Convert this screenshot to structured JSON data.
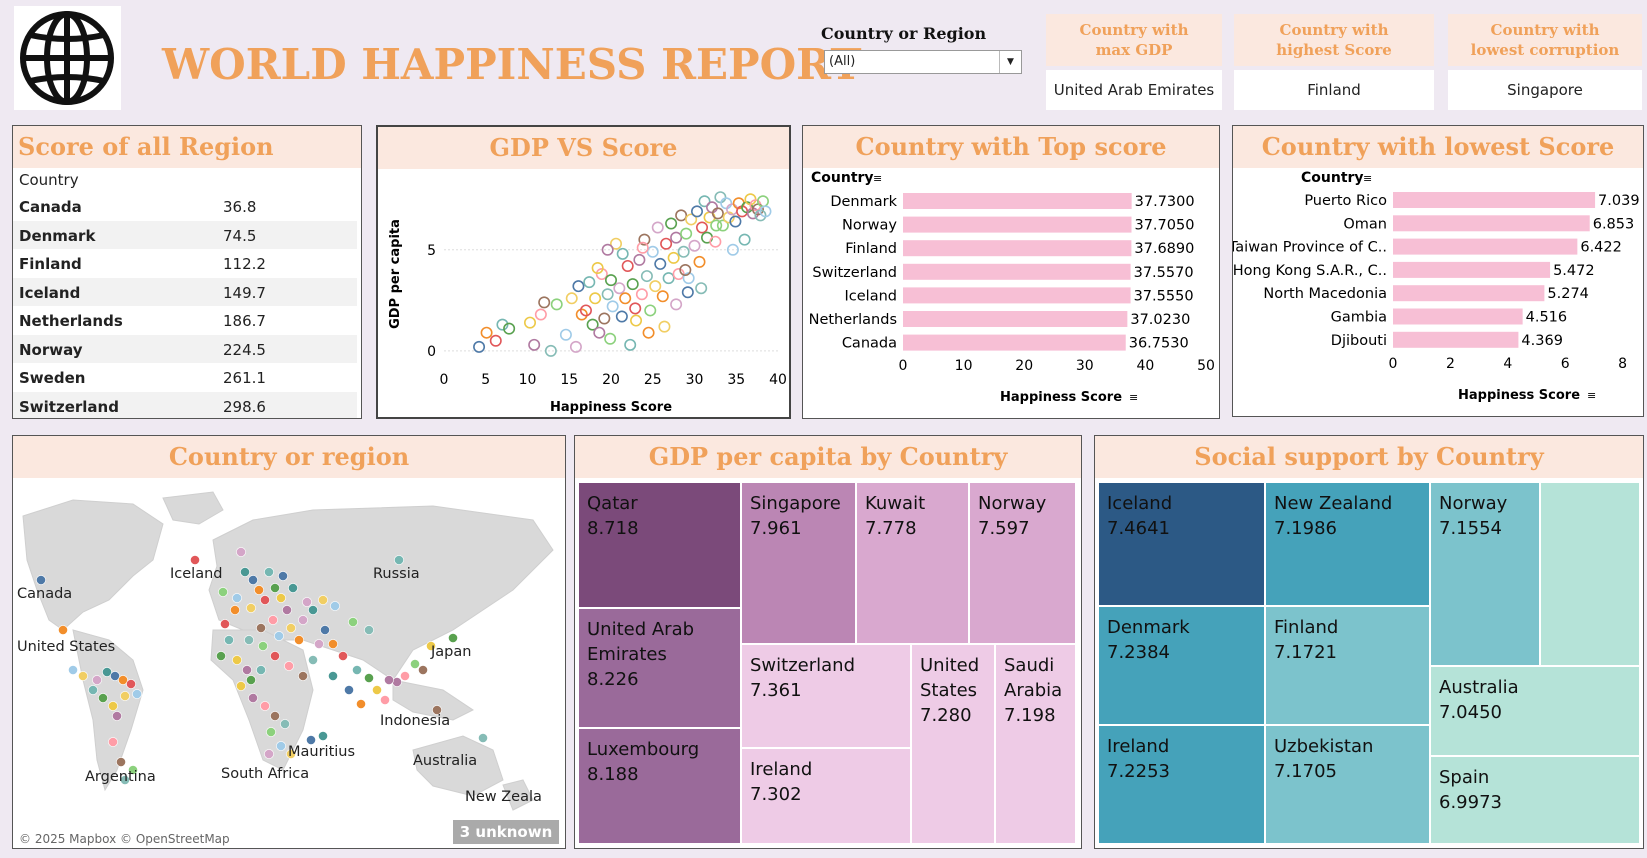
{
  "header": {
    "title": "WORLD HAPPINESS REPORT",
    "filter_label": "Country or Region",
    "filter_value": "(All)"
  },
  "kpis": [
    {
      "title": "Country with max GDP",
      "value": "United Arab Emirates"
    },
    {
      "title": "Country with highest Score",
      "value": "Finland"
    },
    {
      "title": "Country with lowest corruption",
      "value": "Singapore"
    }
  ],
  "region_table": {
    "title": "Score of all Region",
    "column_header": "Country",
    "rows": [
      {
        "country": "Canada",
        "value": "36.8"
      },
      {
        "country": "Denmark",
        "value": "74.5"
      },
      {
        "country": "Finland",
        "value": "112.2"
      },
      {
        "country": "Iceland",
        "value": "149.7"
      },
      {
        "country": "Netherlands",
        "value": "186.7"
      },
      {
        "country": "Norway",
        "value": "224.5"
      },
      {
        "country": "Sweden",
        "value": "261.1"
      },
      {
        "country": "Switzerland",
        "value": "298.6"
      }
    ]
  },
  "map_panel": {
    "title": "Country or region",
    "labels": [
      "Canada",
      "United States",
      "Iceland",
      "Russia",
      "Japan",
      "Indonesia",
      "Australia",
      "Mauritius",
      "South Africa",
      "Argentina",
      "New Zeala"
    ],
    "attribution": "© 2025 Mapbox © OpenStreetMap",
    "unknown_badge": "3 unknown"
  },
  "chart_data": [
    {
      "type": "scatter",
      "title": "GDP VS Score",
      "xlabel": "Happiness Score",
      "ylabel": "GDP per capita",
      "xlim": [
        0,
        40
      ],
      "ylim": [
        -0.5,
        8.5
      ],
      "xticks": [
        "0",
        "5",
        "10",
        "15",
        "20",
        "25",
        "30",
        "35",
        "40"
      ],
      "yticks": [
        "0",
        "5"
      ],
      "grid": true,
      "points": [
        [
          4.2,
          0.2
        ],
        [
          5.1,
          0.9
        ],
        [
          6.2,
          0.5
        ],
        [
          7.0,
          1.3
        ],
        [
          7.8,
          1.1
        ],
        [
          10.3,
          1.4
        ],
        [
          10.8,
          0.3
        ],
        [
          11.6,
          1.8
        ],
        [
          12.0,
          2.4
        ],
        [
          12.8,
          0.0
        ],
        [
          13.5,
          2.3
        ],
        [
          14.6,
          0.8
        ],
        [
          15.3,
          2.6
        ],
        [
          15.8,
          0.2
        ],
        [
          16.1,
          3.2
        ],
        [
          16.5,
          1.8
        ],
        [
          17.0,
          2.0
        ],
        [
          17.4,
          3.4
        ],
        [
          17.8,
          1.3
        ],
        [
          18.1,
          2.6
        ],
        [
          18.6,
          0.9
        ],
        [
          18.9,
          3.8
        ],
        [
          19.2,
          1.6
        ],
        [
          19.6,
          2.8
        ],
        [
          19.9,
          0.6
        ],
        [
          20.2,
          2.2
        ],
        [
          20.6,
          5.3
        ],
        [
          21.0,
          3.1
        ],
        [
          21.3,
          1.7
        ],
        [
          21.7,
          2.6
        ],
        [
          22.0,
          4.2
        ],
        [
          22.3,
          0.3
        ],
        [
          22.6,
          3.3
        ],
        [
          23.0,
          1.5
        ],
        [
          23.4,
          4.5
        ],
        [
          23.7,
          2.8
        ],
        [
          24.0,
          5.5
        ],
        [
          24.3,
          3.7
        ],
        [
          24.7,
          2.0
        ],
        [
          25.0,
          4.9
        ],
        [
          25.3,
          3.2
        ],
        [
          25.6,
          6.1
        ],
        [
          25.9,
          4.3
        ],
        [
          26.2,
          2.7
        ],
        [
          26.6,
          5.3
        ],
        [
          26.9,
          3.6
        ],
        [
          27.2,
          6.3
        ],
        [
          27.5,
          4.6
        ],
        [
          27.8,
          5.6
        ],
        [
          28.1,
          3.8
        ],
        [
          28.4,
          6.7
        ],
        [
          28.7,
          4.9
        ],
        [
          29.0,
          5.8
        ],
        [
          29.3,
          3.6
        ],
        [
          29.6,
          6.5
        ],
        [
          30.0,
          5.2
        ],
        [
          30.3,
          6.9
        ],
        [
          30.6,
          4.4
        ],
        [
          30.9,
          6.1
        ],
        [
          31.2,
          7.4
        ],
        [
          31.5,
          5.6
        ],
        [
          31.8,
          6.6
        ],
        [
          32.1,
          7.1
        ],
        [
          32.5,
          5.4
        ],
        [
          32.8,
          6.8
        ],
        [
          33.1,
          7.6
        ],
        [
          33.4,
          6.2
        ],
        [
          33.8,
          7.3
        ],
        [
          34.1,
          6.6
        ],
        [
          34.5,
          7.0
        ],
        [
          34.9,
          6.4
        ],
        [
          35.3,
          7.3
        ],
        [
          35.7,
          6.9
        ],
        [
          36.0,
          5.5
        ],
        [
          36.3,
          7.1
        ],
        [
          36.7,
          7.5
        ],
        [
          37.0,
          6.8
        ],
        [
          37.3,
          7.2
        ],
        [
          37.6,
          7.0
        ],
        [
          37.9,
          6.7
        ],
        [
          38.2,
          7.4
        ],
        [
          38.5,
          6.9
        ],
        [
          26.4,
          1.2
        ],
        [
          27.8,
          2.3
        ],
        [
          29.2,
          2.9
        ],
        [
          24.5,
          0.9
        ],
        [
          22.9,
          2.1
        ],
        [
          21.4,
          4.8
        ],
        [
          20.0,
          3.5
        ],
        [
          18.4,
          4.1
        ],
        [
          19.6,
          5.0
        ],
        [
          23.8,
          5.1
        ],
        [
          28.9,
          4.0
        ],
        [
          30.8,
          3.1
        ],
        [
          32.6,
          6.2
        ],
        [
          34.6,
          5.0
        ]
      ]
    },
    {
      "type": "bar",
      "title": "Country with Top score",
      "axis_field": "Country",
      "xlabel": "Happiness Score",
      "xlim": [
        0,
        50
      ],
      "xticks": [
        "0",
        "10",
        "20",
        "30",
        "40",
        "50"
      ],
      "categories": [
        "Denmark",
        "Norway",
        "Finland",
        "Switzerland",
        "Iceland",
        "Netherlands",
        "Canada"
      ],
      "values": [
        37.73,
        37.705,
        37.689,
        37.557,
        37.555,
        37.023,
        36.753
      ],
      "labels": [
        "37.7300",
        "37.7050",
        "37.6890",
        "37.5570",
        "37.5550",
        "37.0230",
        "36.7530"
      ],
      "color": "#f7bfd5"
    },
    {
      "type": "bar",
      "title": "Country with lowest Score",
      "axis_field": "Country",
      "xlabel": "Happiness Score",
      "xlim": [
        0,
        8.5
      ],
      "xticks": [
        "0",
        "2",
        "4",
        "6",
        "8"
      ],
      "categories": [
        "Puerto Rico",
        "Oman",
        "Taiwan Province of C..",
        "Hong Kong S.A.R., C..",
        "North Macedonia",
        "Gambia",
        "Djibouti"
      ],
      "values": [
        7.039,
        6.853,
        6.422,
        5.472,
        5.274,
        4.516,
        4.369
      ],
      "labels": [
        "7.039",
        "6.853",
        "6.422",
        "5.472",
        "5.274",
        "4.516",
        "4.369"
      ],
      "color": "#f7bfd5"
    },
    {
      "type": "treemap",
      "title": "GDP per capita by Country",
      "items": [
        {
          "name": "Qatar",
          "value": "8.718",
          "color": "#7b4a7a"
        },
        {
          "name": "United Arab Emirates",
          "value": "8.226",
          "color": "#9a6a9a"
        },
        {
          "name": "Luxembourg",
          "value": "8.188",
          "color": "#9a6a9a"
        },
        {
          "name": "Singapore",
          "value": "7.961",
          "color": "#bb86b4"
        },
        {
          "name": "Kuwait",
          "value": "7.778",
          "color": "#d9a8cf"
        },
        {
          "name": "Norway",
          "value": "7.597",
          "color": "#d9a8cf"
        },
        {
          "name": "Switzerland",
          "value": "7.361",
          "color": "#eecbe6"
        },
        {
          "name": "Ireland",
          "value": "7.302",
          "color": "#eecbe6"
        },
        {
          "name": "United States",
          "value": "7.280",
          "color": "#eecbe6"
        },
        {
          "name": "Saudi Arabia",
          "value": "7.198",
          "color": "#eecbe6"
        }
      ]
    },
    {
      "type": "treemap",
      "title": "Social support by Country",
      "items": [
        {
          "name": "Iceland",
          "value": "7.4641",
          "color": "#2c5985"
        },
        {
          "name": "Denmark",
          "value": "7.2384",
          "color": "#45a2ba"
        },
        {
          "name": "Ireland",
          "value": "7.2253",
          "color": "#45a2ba"
        },
        {
          "name": "New Zealand",
          "value": "7.1986",
          "color": "#45a2ba"
        },
        {
          "name": "Finland",
          "value": "7.1721",
          "color": "#7cc3cc"
        },
        {
          "name": "Uzbekistan",
          "value": "7.1705",
          "color": "#7cc3cc"
        },
        {
          "name": "Norway",
          "value": "7.1554",
          "color": "#7cc3cc"
        },
        {
          "name": "Australia",
          "value": "7.0450",
          "color": "#b5e3d8"
        },
        {
          "name": "Spain",
          "value": "6.9973",
          "color": "#b5e3d8"
        },
        {
          "name": "",
          "value": "",
          "color": "#b5e3d8"
        }
      ]
    }
  ]
}
